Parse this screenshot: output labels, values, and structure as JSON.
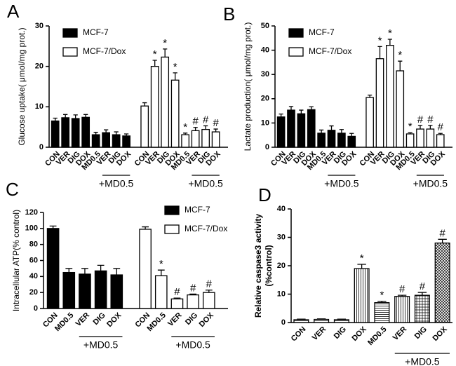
{
  "chart_data": [
    {
      "type": "bar",
      "panel_label": "A",
      "ylabel": "Glucose uptake( μmol/mg prot.)",
      "ylim": [
        0,
        30
      ],
      "yticks": [
        0,
        10,
        20,
        30
      ],
      "categories": [
        "CON",
        "VER",
        "DIG",
        "DOX",
        "MD0.5",
        "VER",
        "DIG",
        "DOX"
      ],
      "subgroup_label": "+MD0.5",
      "legend": "upper left",
      "series": [
        {
          "name": "MCF-7",
          "color": "#000000",
          "values": [
            6.5,
            7.3,
            7.1,
            7.4,
            3.1,
            3.6,
            3.1,
            2.8
          ],
          "errors": [
            0.7,
            0.8,
            0.9,
            0.7,
            0.6,
            0.7,
            0.7,
            0.5
          ],
          "markers": [
            null,
            null,
            null,
            null,
            null,
            null,
            null,
            null
          ]
        },
        {
          "name": "MCF-7/Dox",
          "color": "#ffffff",
          "values": [
            10.2,
            20,
            22.3,
            16.6,
            3.1,
            4.1,
            4.4,
            3.8
          ],
          "errors": [
            0.8,
            1.5,
            2,
            1.8,
            0.4,
            0.8,
            0.9,
            0.7
          ],
          "markers": [
            null,
            "*",
            "*",
            "*",
            "*",
            "#",
            "#",
            "#"
          ]
        }
      ]
    },
    {
      "type": "bar",
      "panel_label": "B",
      "ylabel": "Lactate production( μmol/mg prot.)",
      "ylim": [
        0,
        50
      ],
      "yticks": [
        0,
        10,
        20,
        30,
        40,
        50
      ],
      "categories": [
        "CON",
        "VER",
        "DIG",
        "DOX",
        "MD0.5",
        "VER",
        "DIG",
        "DOX"
      ],
      "subgroup_label": "+MD0.5",
      "legend": "upper left",
      "series": [
        {
          "name": "MCF-7",
          "color": "#000000",
          "values": [
            12.5,
            15.3,
            13.8,
            15.5,
            5.8,
            7,
            5.8,
            4.5
          ],
          "errors": [
            1.2,
            1.5,
            1.5,
            1.2,
            1.3,
            1.8,
            1.5,
            1.2
          ],
          "markers": [
            null,
            null,
            null,
            null,
            null,
            null,
            null,
            null
          ]
        },
        {
          "name": "MCF-7/Dox",
          "color": "#ffffff",
          "values": [
            20.5,
            36.5,
            42,
            31.5,
            5.5,
            7.5,
            7.5,
            5.2
          ],
          "errors": [
            1,
            5,
            2.5,
            4,
            0.5,
            1.5,
            1.5,
            0.5
          ],
          "markers": [
            null,
            "*",
            "*",
            "*",
            "*",
            "#",
            "#",
            "#"
          ]
        }
      ]
    },
    {
      "type": "bar",
      "panel_label": "C",
      "ylabel": "Intracellular ATP(% control)",
      "ylim": [
        0,
        120
      ],
      "yticks": [
        0,
        20,
        40,
        60,
        80,
        100,
        120
      ],
      "categories": [
        "CON",
        "MD0.5",
        "VER",
        "DIG",
        "DOX"
      ],
      "subgroup_label": "+MD0.5",
      "legend": "upper right",
      "series": [
        {
          "name": "MCF-7",
          "color": "#000000",
          "values": [
            100,
            45,
            43,
            47,
            42
          ],
          "errors": [
            3,
            5,
            7,
            7,
            8
          ],
          "markers": [
            null,
            null,
            null,
            null,
            null
          ]
        },
        {
          "name": "MCF-7/Dox",
          "color": "#ffffff",
          "values": [
            99,
            41,
            12,
            17,
            20
          ],
          "errors": [
            3,
            7,
            1,
            1,
            3
          ],
          "markers": [
            null,
            "*",
            "#",
            "#",
            "#"
          ]
        }
      ]
    },
    {
      "type": "bar",
      "panel_label": "D",
      "ylabel": [
        "Relative caspase3 activity",
        "(%control)"
      ],
      "ylim": [
        0,
        40
      ],
      "yticks": [
        0,
        10,
        20,
        30,
        40
      ],
      "categories": [
        "CON",
        "VER",
        "DIG",
        "DOX",
        "MD0.5",
        "VER",
        "DIG",
        "DOX"
      ],
      "subgroup_label": "+MD0.5",
      "series": [
        {
          "color": "#000000",
          "values": [
            1,
            1.1,
            1,
            19,
            7,
            9.2,
            9.6,
            28
          ],
          "errors": [
            0.2,
            0.2,
            0.2,
            1.5,
            0.5,
            0.4,
            1,
            1.3
          ],
          "markers": [
            null,
            null,
            null,
            "*",
            "*",
            "#",
            "#",
            "#"
          ]
        }
      ]
    }
  ]
}
